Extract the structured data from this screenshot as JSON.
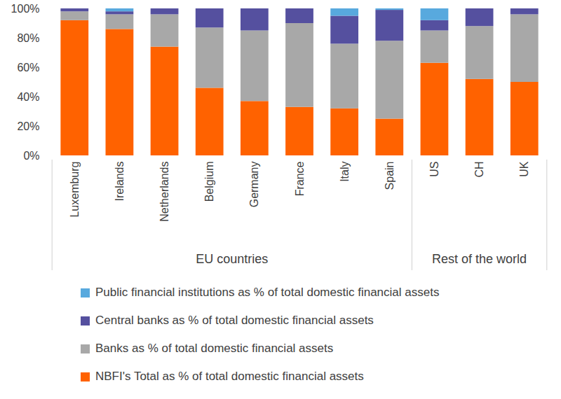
{
  "chart_data": {
    "type": "bar",
    "stacked": true,
    "categories": [
      "Luxemburg",
      "Irelands",
      "Netherlands",
      "Belgium",
      "Germany",
      "France",
      "Italy",
      "Spain",
      "US",
      "CH",
      "UK"
    ],
    "groups": [
      {
        "label": "EU countries",
        "categories": [
          "Luxemburg",
          "Irelands",
          "Netherlands",
          "Belgium",
          "Germany",
          "France",
          "Italy",
          "Spain"
        ]
      },
      {
        "label": "Rest of the world",
        "categories": [
          "US",
          "CH",
          "UK"
        ]
      }
    ],
    "series": [
      {
        "name": "NBFI's Total as % of total domestic financial assets",
        "color": "#ff6200",
        "values": [
          92,
          86,
          74,
          46,
          37,
          33,
          32,
          25,
          63,
          52,
          50
        ]
      },
      {
        "name": "Banks as % of total domestic financial assets",
        "color": "#a8a8a8",
        "values": [
          6,
          10,
          22,
          41,
          48,
          57,
          44,
          53,
          22,
          36,
          46
        ]
      },
      {
        "name": "Central banks as % of total domestic financial assets",
        "color": "#55509f",
        "values": [
          2,
          2,
          4,
          13,
          15,
          10,
          19,
          21,
          7,
          12,
          4
        ]
      },
      {
        "name": "Public financial institutions as % of total domestic financial assets",
        "color": "#58a9de",
        "values": [
          0,
          2,
          0,
          0,
          0,
          0,
          5,
          1,
          8,
          0,
          0
        ]
      }
    ],
    "ylim": [
      0,
      100
    ],
    "yticks": [
      {
        "value": 0,
        "label": "0%"
      },
      {
        "value": 20,
        "label": "20%"
      },
      {
        "value": 40,
        "label": "40%"
      },
      {
        "value": 60,
        "label": "60%"
      },
      {
        "value": 80,
        "label": "80%"
      },
      {
        "value": 100,
        "label": "100%"
      }
    ],
    "grid": false,
    "legend": "bottom"
  }
}
